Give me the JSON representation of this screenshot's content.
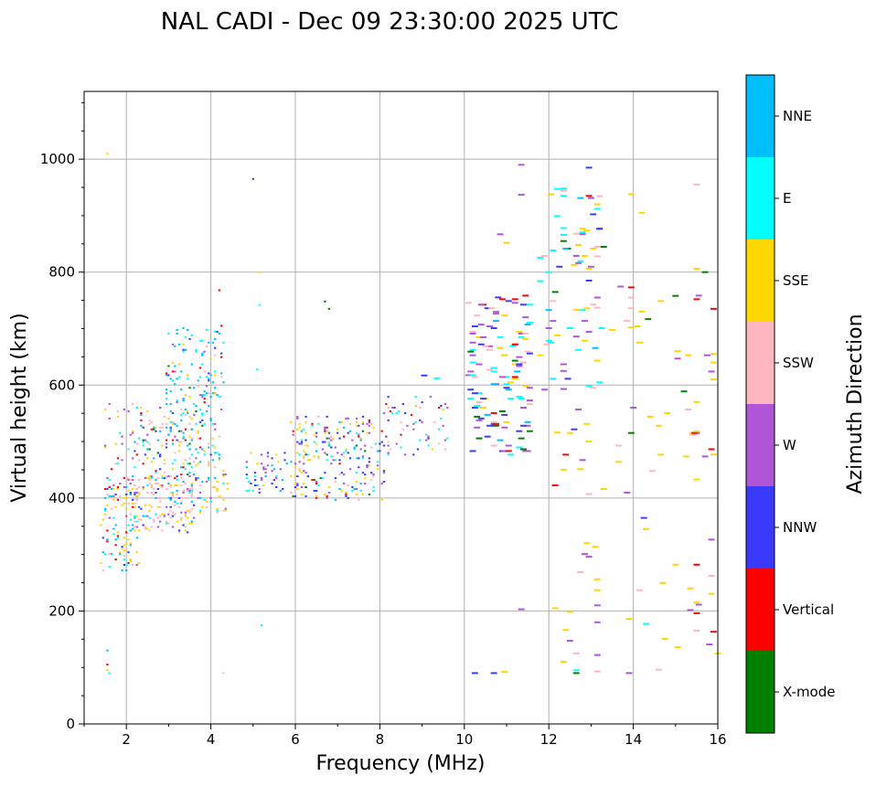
{
  "chart_data": {
    "type": "scatter",
    "title": "NAL CADI - Dec 09 23:30:00 2025 UTC",
    "xlabel": "Frequency (MHz)",
    "ylabel": "Virtual height (km)",
    "xlim": [
      1,
      16
    ],
    "ylim": [
      0,
      1120
    ],
    "xticks": [
      2,
      4,
      6,
      8,
      10,
      12,
      14,
      16
    ],
    "yticks": [
      0,
      200,
      400,
      600,
      800,
      1000
    ],
    "grid": true,
    "colorbar": {
      "label": "Azimuth Direction",
      "categories": [
        {
          "name": "X-mode",
          "color": "#008000"
        },
        {
          "name": "Vertical",
          "color": "#ff0000"
        },
        {
          "name": "NNW",
          "color": "#3a3aff"
        },
        {
          "name": "W",
          "color": "#b055d6"
        },
        {
          "name": "SSW",
          "color": "#ffb6c1"
        },
        {
          "name": "SSE",
          "color": "#ffd700"
        },
        {
          "name": "E",
          "color": "#00ffff"
        },
        {
          "name": "NNE",
          "color": "#00bfff"
        }
      ]
    },
    "regions": [
      {
        "f": [
          1.4,
          2.3
        ],
        "h": [
          270,
          420
        ],
        "n": 90,
        "cats": [
          "SSE",
          "E",
          "NNE",
          "SSW",
          "NNW",
          "W",
          "Vertical"
        ],
        "w": [
          3,
          2,
          2,
          1,
          1,
          1,
          1
        ]
      },
      {
        "f": [
          1.5,
          2.2
        ],
        "h": [
          400,
          570
        ],
        "n": 40,
        "cats": [
          "SSE",
          "W",
          "SSW",
          "NNW",
          "Vertical",
          "E"
        ],
        "w": [
          2,
          2,
          1,
          1,
          1,
          1
        ]
      },
      {
        "f": [
          2.0,
          3.6
        ],
        "h": [
          340,
          440
        ],
        "n": 180,
        "cats": [
          "SSW",
          "SSE",
          "NNE",
          "E",
          "W",
          "NNW"
        ],
        "w": [
          5,
          2,
          1,
          1,
          1,
          1
        ]
      },
      {
        "f": [
          2.2,
          3.8
        ],
        "h": [
          430,
          560
        ],
        "n": 120,
        "cats": [
          "SSW",
          "SSE",
          "E",
          "NNE",
          "W",
          "NNW",
          "Vertical",
          "X-mode"
        ],
        "w": [
          3,
          2,
          2,
          2,
          1,
          1,
          1,
          1
        ]
      },
      {
        "f": [
          2.9,
          4.3
        ],
        "h": [
          460,
          700
        ],
        "n": 170,
        "cats": [
          "NNE",
          "E",
          "SSE",
          "W",
          "SSW",
          "NNW",
          "Vertical",
          "X-mode"
        ],
        "w": [
          5,
          4,
          1,
          1,
          1,
          1,
          1,
          1
        ]
      },
      {
        "f": [
          3.3,
          4.4
        ],
        "h": [
          370,
          470
        ],
        "n": 60,
        "cats": [
          "SSE",
          "SSW",
          "NNE",
          "E",
          "W"
        ],
        "w": [
          3,
          2,
          1,
          1,
          1
        ]
      },
      {
        "f": [
          4.8,
          5.8
        ],
        "h": [
          410,
          480
        ],
        "n": 50,
        "cats": [
          "NNW",
          "W",
          "NNE",
          "E",
          "SSE"
        ],
        "w": [
          3,
          3,
          1,
          1,
          1
        ]
      },
      {
        "f": [
          5.9,
          8.1
        ],
        "h": [
          395,
          545
        ],
        "n": 240,
        "cats": [
          "SSE",
          "W",
          "NNW",
          "E",
          "SSW",
          "Vertical",
          "X-mode",
          "NNE"
        ],
        "w": [
          4,
          3,
          3,
          2,
          1,
          1,
          1,
          1
        ]
      },
      {
        "f": [
          8.1,
          9.6
        ],
        "h": [
          475,
          580
        ],
        "n": 60,
        "cats": [
          "E",
          "W",
          "NNW",
          "SSE",
          "Vertical",
          "SSW"
        ],
        "w": [
          3,
          2,
          2,
          1,
          1,
          1
        ]
      },
      {
        "f": [
          10.1,
          11.6
        ],
        "h": [
          470,
          760
        ],
        "n": 130,
        "cats": [
          "W",
          "E",
          "SSW",
          "NNW",
          "SSE",
          "Vertical",
          "X-mode",
          "NNE"
        ],
        "w": [
          3,
          2,
          2,
          2,
          2,
          1,
          1,
          1
        ]
      },
      {
        "f": [
          11.8,
          13.3
        ],
        "h": [
          590,
          950
        ],
        "n": 60,
        "cats": [
          "E",
          "SSE",
          "SSW",
          "W",
          "Vertical",
          "NNE",
          "X-mode",
          "NNW"
        ],
        "w": [
          3,
          3,
          2,
          2,
          1,
          1,
          1,
          1
        ]
      },
      {
        "f": [
          12.0,
          16.0
        ],
        "h": [
          90,
          560
        ],
        "n": 40,
        "cats": [
          "SSE",
          "W",
          "SSW",
          "Vertical",
          "NNW",
          "E"
        ],
        "w": [
          4,
          3,
          2,
          1,
          1,
          1
        ]
      },
      {
        "f": [
          13.5,
          16.0
        ],
        "h": [
          470,
          800
        ],
        "n": 25,
        "cats": [
          "SSE",
          "SSW",
          "W",
          "Vertical",
          "X-mode"
        ],
        "w": [
          4,
          1,
          1,
          1,
          1
        ]
      }
    ],
    "points": [
      {
        "f": 1.55,
        "h": 1010,
        "c": "SSE"
      },
      {
        "f": 1.55,
        "h": 130,
        "c": "NNE"
      },
      {
        "f": 1.55,
        "h": 105,
        "c": "Vertical"
      },
      {
        "f": 1.55,
        "h": 95,
        "c": "SSE"
      },
      {
        "f": 1.6,
        "h": 90,
        "c": "E"
      },
      {
        "f": 4.3,
        "h": 90,
        "c": "SSW"
      },
      {
        "f": 4.2,
        "h": 768,
        "c": "Vertical"
      },
      {
        "f": 4.25,
        "h": 705,
        "c": "Vertical"
      },
      {
        "f": 5.0,
        "h": 965,
        "c": "NNW"
      },
      {
        "f": 5.15,
        "h": 800,
        "c": "SSE"
      },
      {
        "f": 5.15,
        "h": 742,
        "c": "E"
      },
      {
        "f": 5.1,
        "h": 628,
        "c": "E"
      },
      {
        "f": 5.2,
        "h": 175,
        "c": "E"
      },
      {
        "f": 6.7,
        "h": 748,
        "c": "X-mode"
      },
      {
        "f": 6.8,
        "h": 735,
        "c": "X-mode"
      },
      {
        "f": 9.05,
        "h": 617,
        "c": "NNW"
      },
      {
        "f": 9.35,
        "h": 612,
        "c": "E"
      },
      {
        "f": 11.35,
        "h": 990,
        "c": "W"
      },
      {
        "f": 11.35,
        "h": 937,
        "c": "W"
      },
      {
        "f": 10.85,
        "h": 867,
        "c": "W"
      },
      {
        "f": 11.0,
        "h": 852,
        "c": "SSE"
      },
      {
        "f": 10.25,
        "h": 90,
        "c": "NNW"
      },
      {
        "f": 10.7,
        "h": 90,
        "c": "NNW"
      },
      {
        "f": 10.95,
        "h": 92,
        "c": "SSE"
      },
      {
        "f": 11.35,
        "h": 203,
        "c": "W"
      },
      {
        "f": 12.95,
        "h": 985,
        "c": "NNW"
      },
      {
        "f": 12.95,
        "h": 935,
        "c": "Vertical"
      },
      {
        "f": 13.15,
        "h": 920,
        "c": "SSE"
      },
      {
        "f": 13.15,
        "h": 912,
        "c": "E"
      },
      {
        "f": 12.35,
        "h": 948,
        "c": "E"
      },
      {
        "f": 12.35,
        "h": 935,
        "c": "E"
      },
      {
        "f": 12.35,
        "h": 878,
        "c": "E"
      },
      {
        "f": 12.35,
        "h": 866,
        "c": "E"
      },
      {
        "f": 12.35,
        "h": 855,
        "c": "X-mode"
      },
      {
        "f": 12.65,
        "h": 868,
        "c": "SSW"
      },
      {
        "f": 13.15,
        "h": 828,
        "c": "SSW"
      },
      {
        "f": 12.95,
        "h": 806,
        "c": "SSE"
      },
      {
        "f": 12.95,
        "h": 785,
        "c": "NNW"
      },
      {
        "f": 13.95,
        "h": 938,
        "c": "SSE"
      },
      {
        "f": 14.2,
        "h": 905,
        "c": "SSE"
      },
      {
        "f": 13.95,
        "h": 773,
        "c": "Vertical"
      },
      {
        "f": 13.95,
        "h": 755,
        "c": "SSW"
      },
      {
        "f": 14.2,
        "h": 730,
        "c": "SSE"
      },
      {
        "f": 13.95,
        "h": 702,
        "c": "SSE"
      },
      {
        "f": 15.5,
        "h": 955,
        "c": "SSW"
      },
      {
        "f": 15.5,
        "h": 806,
        "c": "SSE"
      },
      {
        "f": 15.0,
        "h": 758,
        "c": "X-mode"
      },
      {
        "f": 15.5,
        "h": 752,
        "c": "Vertical"
      },
      {
        "f": 15.9,
        "h": 735,
        "c": "Vertical"
      },
      {
        "f": 15.9,
        "h": 655,
        "c": "SSE"
      },
      {
        "f": 15.05,
        "h": 660,
        "c": "SSE"
      },
      {
        "f": 15.05,
        "h": 647,
        "c": "W"
      },
      {
        "f": 15.9,
        "h": 640,
        "c": "SSE"
      },
      {
        "f": 15.9,
        "h": 610,
        "c": "SSE"
      },
      {
        "f": 15.5,
        "h": 570,
        "c": "SSE"
      },
      {
        "f": 15.5,
        "h": 518,
        "c": "SSE"
      },
      {
        "f": 15.9,
        "h": 477,
        "c": "SSE"
      },
      {
        "f": 15.5,
        "h": 433,
        "c": "SSE"
      },
      {
        "f": 14.3,
        "h": 345,
        "c": "SSE"
      },
      {
        "f": 15.0,
        "h": 282,
        "c": "SSE"
      },
      {
        "f": 15.5,
        "h": 282,
        "c": "Vertical"
      },
      {
        "f": 15.5,
        "h": 215,
        "c": "SSE"
      },
      {
        "f": 15.5,
        "h": 196,
        "c": "Vertical"
      },
      {
        "f": 15.5,
        "h": 165,
        "c": "SSW"
      },
      {
        "f": 15.05,
        "h": 136,
        "c": "SSE"
      },
      {
        "f": 14.3,
        "h": 177,
        "c": "E"
      },
      {
        "f": 13.9,
        "h": 186,
        "c": "SSE"
      },
      {
        "f": 13.9,
        "h": 90,
        "c": "W"
      },
      {
        "f": 12.95,
        "h": 296,
        "c": "W"
      },
      {
        "f": 13.15,
        "h": 256,
        "c": "SSE"
      },
      {
        "f": 13.15,
        "h": 210,
        "c": "W"
      },
      {
        "f": 13.15,
        "h": 180,
        "c": "W"
      },
      {
        "f": 13.15,
        "h": 122,
        "c": "W"
      },
      {
        "f": 13.15,
        "h": 93,
        "c": "SSW"
      },
      {
        "f": 12.65,
        "h": 125,
        "c": "SSW"
      },
      {
        "f": 12.35,
        "h": 110,
        "c": "SSE"
      },
      {
        "f": 12.65,
        "h": 95,
        "c": "E"
      },
      {
        "f": 12.65,
        "h": 90,
        "c": "X-mode"
      },
      {
        "f": 12.95,
        "h": 407,
        "c": "SSW"
      },
      {
        "f": 12.95,
        "h": 500,
        "c": "SSE"
      },
      {
        "f": 12.35,
        "h": 450,
        "c": "SSE"
      },
      {
        "f": 12.2,
        "h": 516,
        "c": "SSE"
      },
      {
        "f": 12.35,
        "h": 593,
        "c": "W"
      },
      {
        "f": 12.35,
        "h": 625,
        "c": "W"
      },
      {
        "f": 12.65,
        "h": 686,
        "c": "W"
      },
      {
        "f": 12.65,
        "h": 733,
        "c": "SSE"
      },
      {
        "f": 13.15,
        "h": 755,
        "c": "W"
      },
      {
        "f": 13.15,
        "h": 737,
        "c": "SSW"
      }
    ]
  }
}
